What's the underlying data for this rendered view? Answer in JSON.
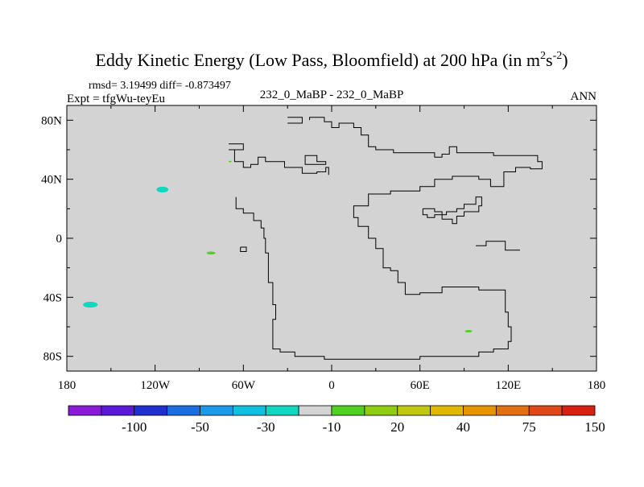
{
  "chart_data": {
    "type": "heatmap",
    "title_main": "Eddy Kinetic Energy (Low Pass, Bloomfield) at 200 hPa (in m",
    "title_unit_sup1": "2",
    "title_unit_mid": "s",
    "title_unit_sup2": "-2",
    "title_close": ")",
    "stats": "rmsd= 3.19499 diff= -0.873497",
    "expt": "Expt = tfgWu-teyEu",
    "center_label": "232_0_MaBP - 232_0_MaBP",
    "right_label": "ANN",
    "x_ticks": [
      {
        "value": -180,
        "label": "180"
      },
      {
        "value": -120,
        "label": "120W"
      },
      {
        "value": -60,
        "label": "60W"
      },
      {
        "value": 0,
        "label": "0"
      },
      {
        "value": 60,
        "label": "60E"
      },
      {
        "value": 120,
        "label": "120E"
      },
      {
        "value": 180,
        "label": "180"
      }
    ],
    "y_ticks": [
      {
        "value": 80,
        "label": "80N"
      },
      {
        "value": 40,
        "label": "40N"
      },
      {
        "value": 0,
        "label": "0"
      },
      {
        "value": -40,
        "label": "40S"
      },
      {
        "value": -80,
        "label": "80S"
      }
    ],
    "xlim": [
      -180,
      180
    ],
    "ylim": [
      -90,
      90
    ],
    "background_color": "#d3d3d3",
    "colorbar": {
      "colors": [
        "#8a1ad8",
        "#5a1ad8",
        "#2030d0",
        "#1a6ee0",
        "#1a9ae8",
        "#10c0e0",
        "#10d8c0",
        "#d3d3d3",
        "#50d020",
        "#90cc10",
        "#c0c810",
        "#e0b800",
        "#e89400",
        "#e07010",
        "#e04818",
        "#d82010"
      ],
      "labels": [
        {
          "after_index": 1,
          "text": "-100"
        },
        {
          "after_index": 3,
          "text": "-50"
        },
        {
          "after_index": 5,
          "text": "-30"
        },
        {
          "after_index": 7,
          "text": "-10"
        },
        {
          "after_index": 9,
          "text": "20"
        },
        {
          "after_index": 11,
          "text": "40"
        },
        {
          "after_index": 13,
          "text": "75"
        },
        {
          "after_index": 15,
          "text": "150"
        }
      ]
    },
    "anomalies": [
      {
        "lon": -115,
        "lat": 33,
        "rx": 4,
        "ry": 2,
        "color": "#10d8c0"
      },
      {
        "lon": -164,
        "lat": -45,
        "rx": 5,
        "ry": 2,
        "color": "#10d8c0"
      },
      {
        "lon": -82,
        "lat": -10,
        "rx": 3,
        "ry": 1,
        "color": "#50d020"
      },
      {
        "lon": -69,
        "lat": 52,
        "rx": 1,
        "ry": 0.5,
        "color": "#50d020"
      },
      {
        "lon": 93,
        "lat": -63,
        "rx": 2.5,
        "ry": 0.8,
        "color": "#50d020"
      }
    ],
    "coastlines": [
      [
        [
          -30,
          82
        ],
        [
          -20,
          82
        ],
        [
          -20,
          78
        ],
        [
          -30,
          78
        ]
      ],
      [
        [
          -70,
          64
        ],
        [
          -60,
          64
        ],
        [
          -60,
          60
        ],
        [
          -70,
          60
        ]
      ],
      [
        [
          -66,
          60
        ],
        [
          -66,
          52
        ],
        [
          -60,
          52
        ],
        [
          -60,
          48
        ],
        [
          -55,
          48
        ],
        [
          -55,
          50
        ],
        [
          -50,
          50
        ],
        [
          -50,
          55
        ],
        [
          -45,
          55
        ],
        [
          -45,
          52
        ],
        [
          -32,
          52
        ],
        [
          -32,
          48
        ],
        [
          -20,
          48
        ],
        [
          -20,
          44
        ],
        [
          -10,
          44
        ],
        [
          -10,
          45
        ],
        [
          -4,
          45
        ],
        [
          -4,
          48
        ],
        [
          -2,
          48
        ],
        [
          -2,
          43
        ]
      ],
      [
        [
          -18,
          52
        ],
        [
          -18,
          56
        ],
        [
          -10,
          56
        ],
        [
          -10,
          52
        ],
        [
          -4,
          52
        ],
        [
          -4,
          50
        ],
        [
          -18,
          50
        ],
        [
          -18,
          52
        ]
      ],
      [
        [
          -65,
          28
        ],
        [
          -65,
          20
        ],
        [
          -60,
          20
        ],
        [
          -60,
          17
        ],
        [
          -53,
          17
        ],
        [
          -53,
          12
        ],
        [
          -48,
          12
        ],
        [
          -48,
          7
        ],
        [
          -46,
          7
        ],
        [
          -46,
          0
        ],
        [
          -45,
          0
        ],
        [
          -45,
          -10
        ],
        [
          -43,
          -10
        ],
        [
          -43,
          -30
        ],
        [
          -40,
          -30
        ],
        [
          -40,
          -45
        ],
        [
          -38,
          -45
        ],
        [
          -38,
          -55
        ],
        [
          -40,
          -55
        ],
        [
          -40,
          -75
        ],
        [
          -35,
          -75
        ],
        [
          -35,
          -77
        ],
        [
          -25,
          -77
        ],
        [
          -25,
          -80
        ],
        [
          -5,
          -80
        ],
        [
          -5,
          -82
        ],
        [
          60,
          -82
        ],
        [
          60,
          -80
        ],
        [
          100,
          -80
        ],
        [
          100,
          -77
        ],
        [
          110,
          -77
        ],
        [
          110,
          -75
        ],
        [
          120,
          -75
        ],
        [
          120,
          -70
        ],
        [
          122,
          -70
        ],
        [
          122,
          -60
        ],
        [
          120,
          -60
        ],
        [
          120,
          -50
        ],
        [
          118,
          -50
        ],
        [
          118,
          -35
        ],
        [
          100,
          -35
        ],
        [
          100,
          -33
        ],
        [
          75,
          -33
        ],
        [
          75,
          -37
        ],
        [
          60,
          -37
        ],
        [
          60,
          -38
        ],
        [
          50,
          -38
        ],
        [
          50,
          -30
        ],
        [
          45,
          -30
        ],
        [
          45,
          -22
        ],
        [
          40,
          -22
        ],
        [
          40,
          -20
        ],
        [
          35,
          -20
        ],
        [
          35,
          -7
        ],
        [
          30,
          -7
        ],
        [
          30,
          0
        ],
        [
          25,
          0
        ],
        [
          25,
          8
        ],
        [
          18,
          8
        ],
        [
          18,
          14
        ],
        [
          15,
          14
        ],
        [
          15,
          22
        ],
        [
          25,
          22
        ],
        [
          25,
          30
        ],
        [
          40,
          30
        ],
        [
          40,
          32
        ],
        [
          60,
          32
        ],
        [
          60,
          35
        ],
        [
          70,
          35
        ],
        [
          70,
          40
        ],
        [
          82,
          40
        ],
        [
          82,
          42
        ],
        [
          100,
          42
        ],
        [
          100,
          40
        ],
        [
          108,
          40
        ],
        [
          108,
          35
        ],
        [
          117,
          35
        ],
        [
          117,
          45
        ],
        [
          125,
          45
        ],
        [
          125,
          48
        ],
        [
          135,
          48
        ],
        [
          135,
          47
        ],
        [
          143,
          47
        ],
        [
          143,
          52
        ],
        [
          140,
          52
        ],
        [
          140,
          56
        ],
        [
          110,
          56
        ],
        [
          110,
          58
        ],
        [
          85,
          58
        ],
        [
          85,
          62
        ],
        [
          80,
          62
        ],
        [
          80,
          57
        ],
        [
          75,
          57
        ],
        [
          75,
          55
        ],
        [
          70,
          55
        ],
        [
          70,
          58
        ],
        [
          42,
          58
        ],
        [
          42,
          60
        ],
        [
          30,
          60
        ],
        [
          30,
          62
        ],
        [
          25,
          62
        ],
        [
          25,
          70
        ],
        [
          20,
          70
        ],
        [
          20,
          75
        ],
        [
          15,
          75
        ],
        [
          15,
          78
        ],
        [
          5,
          78
        ],
        [
          5,
          75
        ],
        [
          0,
          75
        ],
        [
          0,
          79
        ],
        [
          -5,
          79
        ],
        [
          -5,
          82
        ],
        [
          -15,
          82
        ],
        [
          -15,
          80
        ]
      ],
      [
        [
          -62,
          -6
        ],
        [
          -58,
          -6
        ],
        [
          -58,
          -9
        ],
        [
          -62,
          -9
        ],
        [
          -62,
          -6
        ]
      ],
      [
        [
          62,
          20
        ],
        [
          70,
          20
        ],
        [
          70,
          18
        ],
        [
          75,
          18
        ],
        [
          75,
          13
        ],
        [
          82,
          13
        ],
        [
          82,
          10
        ],
        [
          85,
          10
        ],
        [
          85,
          15
        ],
        [
          90,
          15
        ],
        [
          90,
          18
        ],
        [
          100,
          18
        ],
        [
          100,
          22
        ],
        [
          102,
          22
        ],
        [
          102,
          28
        ],
        [
          98,
          28
        ],
        [
          98,
          23
        ],
        [
          90,
          23
        ],
        [
          90,
          20
        ],
        [
          85,
          20
        ],
        [
          85,
          18
        ],
        [
          78,
          18
        ],
        [
          78,
          16
        ],
        [
          70,
          16
        ],
        [
          70,
          14
        ],
        [
          65,
          14
        ],
        [
          65,
          16
        ],
        [
          62,
          16
        ],
        [
          62,
          20
        ]
      ],
      [
        [
          128,
          -8
        ],
        [
          118,
          -8
        ],
        [
          118,
          -2
        ],
        [
          105,
          -2
        ],
        [
          105,
          -5
        ],
        [
          98,
          -5
        ]
      ]
    ]
  }
}
